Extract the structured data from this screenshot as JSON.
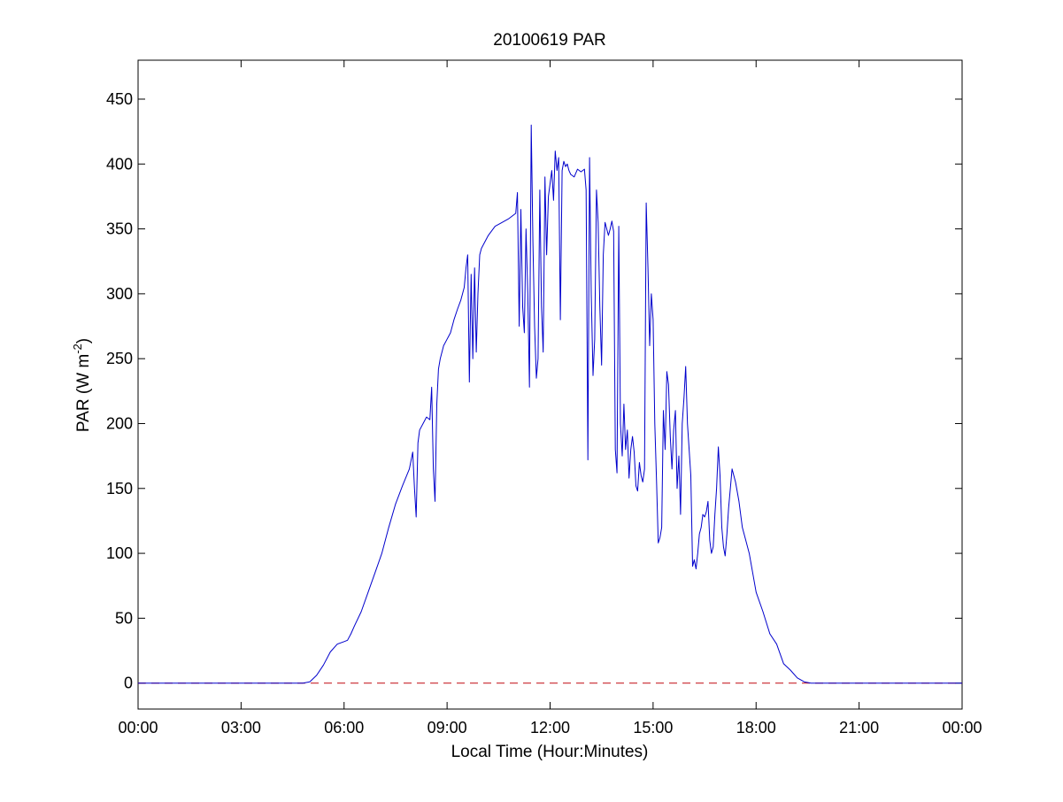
{
  "chart_data": {
    "type": "line",
    "title": "20100619 PAR",
    "xlabel": "Local Time (Hour:Minutes)",
    "ylabel_main": "PAR (W m",
    "ylabel_sup": "-2",
    "ylabel_close": ")",
    "x_unit": "hours",
    "xlim": [
      0,
      24
    ],
    "ylim": [
      -20,
      480
    ],
    "x_ticks": [
      0,
      3,
      6,
      9,
      12,
      15,
      18,
      21,
      24
    ],
    "x_tick_labels": [
      "00:00",
      "03:00",
      "06:00",
      "09:00",
      "12:00",
      "15:00",
      "18:00",
      "21:00",
      "00:00"
    ],
    "y_ticks": [
      0,
      50,
      100,
      150,
      200,
      250,
      300,
      350,
      400,
      450
    ],
    "y_tick_labels": [
      "0",
      "50",
      "100",
      "150",
      "200",
      "250",
      "300",
      "350",
      "400",
      "450"
    ],
    "grid": false,
    "reference_line": {
      "y": 0,
      "color": "#c8262b",
      "style": "dashed"
    },
    "series": [
      {
        "color": "#0000cc",
        "x": [
          0,
          4.8,
          5.0,
          5.2,
          5.4,
          5.6,
          5.8,
          6.0,
          6.1,
          6.2,
          6.3,
          6.5,
          6.7,
          6.9,
          7.1,
          7.3,
          7.5,
          7.7,
          7.9,
          8.0,
          8.05,
          8.1,
          8.15,
          8.2,
          8.3,
          8.4,
          8.5,
          8.55,
          8.6,
          8.65,
          8.7,
          8.75,
          8.8,
          8.9,
          9.0,
          9.1,
          9.2,
          9.3,
          9.4,
          9.5,
          9.55,
          9.6,
          9.65,
          9.7,
          9.75,
          9.8,
          9.85,
          9.9,
          9.95,
          10.0,
          10.2,
          10.4,
          10.6,
          10.8,
          11.0,
          11.05,
          11.1,
          11.15,
          11.2,
          11.25,
          11.3,
          11.35,
          11.4,
          11.45,
          11.5,
          11.55,
          11.6,
          11.65,
          11.7,
          11.75,
          11.8,
          11.85,
          11.9,
          11.95,
          12.0,
          12.05,
          12.1,
          12.15,
          12.2,
          12.25,
          12.3,
          12.35,
          12.4,
          12.45,
          12.5,
          12.55,
          12.6,
          12.7,
          12.8,
          12.9,
          13.0,
          13.05,
          13.1,
          13.15,
          13.2,
          13.25,
          13.3,
          13.35,
          13.4,
          13.45,
          13.5,
          13.55,
          13.6,
          13.65,
          13.7,
          13.75,
          13.8,
          13.85,
          13.9,
          13.95,
          14.0,
          14.05,
          14.1,
          14.15,
          14.2,
          14.25,
          14.3,
          14.35,
          14.4,
          14.45,
          14.5,
          14.55,
          14.6,
          14.65,
          14.7,
          14.75,
          14.8,
          14.85,
          14.9,
          14.95,
          15.0,
          15.05,
          15.1,
          15.15,
          15.2,
          15.25,
          15.3,
          15.35,
          15.4,
          15.45,
          15.5,
          15.55,
          15.6,
          15.65,
          15.7,
          15.75,
          15.8,
          15.85,
          15.9,
          15.95,
          16.0,
          16.05,
          16.1,
          16.15,
          16.2,
          16.25,
          16.3,
          16.35,
          16.4,
          16.45,
          16.5,
          16.55,
          16.6,
          16.65,
          16.7,
          16.75,
          16.8,
          16.85,
          16.9,
          16.95,
          17.0,
          17.05,
          17.1,
          17.15,
          17.2,
          17.3,
          17.4,
          17.5,
          17.6,
          17.7,
          17.8,
          17.9,
          18.0,
          18.2,
          18.4,
          18.6,
          18.8,
          19.0,
          19.2,
          19.4,
          19.6,
          24
        ],
        "y": [
          0,
          0,
          1,
          6,
          14,
          24,
          30,
          32,
          33,
          38,
          44,
          55,
          70,
          85,
          100,
          120,
          138,
          152,
          165,
          178,
          150,
          128,
          185,
          195,
          200,
          205,
          203,
          228,
          165,
          140,
          215,
          242,
          250,
          260,
          265,
          270,
          280,
          288,
          295,
          305,
          320,
          330,
          232,
          315,
          250,
          320,
          255,
          300,
          330,
          335,
          345,
          352,
          355,
          358,
          362,
          378,
          275,
          365,
          290,
          270,
          350,
          300,
          228,
          430,
          340,
          275,
          235,
          250,
          380,
          290,
          255,
          390,
          330,
          375,
          385,
          395,
          372,
          410,
          395,
          405,
          280,
          395,
          402,
          398,
          400,
          395,
          392,
          390,
          396,
          394,
          396,
          380,
          172,
          405,
          300,
          237,
          265,
          380,
          355,
          290,
          245,
          330,
          355,
          350,
          345,
          350,
          356,
          348,
          180,
          162,
          352,
          200,
          175,
          215,
          180,
          195,
          158,
          180,
          190,
          178,
          152,
          148,
          170,
          160,
          155,
          165,
          370,
          320,
          260,
          300,
          280,
          200,
          155,
          108,
          112,
          120,
          210,
          180,
          240,
          230,
          190,
          165,
          195,
          210,
          150,
          175,
          130,
          200,
          220,
          244,
          200,
          180,
          160,
          90,
          95,
          88,
          100,
          115,
          120,
          130,
          128,
          132,
          140,
          110,
          100,
          105,
          130,
          150,
          182,
          160,
          120,
          105,
          98,
          115,
          135,
          165,
          155,
          140,
          120,
          110,
          100,
          85,
          70,
          55,
          38,
          30,
          15,
          10,
          4,
          1,
          0,
          0
        ]
      }
    ]
  }
}
